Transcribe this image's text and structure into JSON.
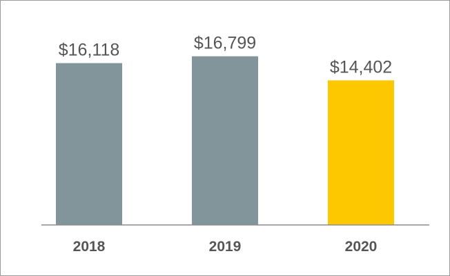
{
  "chart_data": {
    "type": "bar",
    "categories": [
      "2018",
      "2019",
      "2020"
    ],
    "values": [
      16118,
      16799,
      14402
    ],
    "value_labels": [
      "$16,118",
      "$16,799",
      "$14,402"
    ],
    "bar_colors": [
      "#82959a",
      "#82959a",
      "#fdc800"
    ],
    "title": "",
    "xlabel": "",
    "ylabel": "",
    "ylim": [
      0,
      20000
    ],
    "grid": false,
    "legend": "none"
  }
}
